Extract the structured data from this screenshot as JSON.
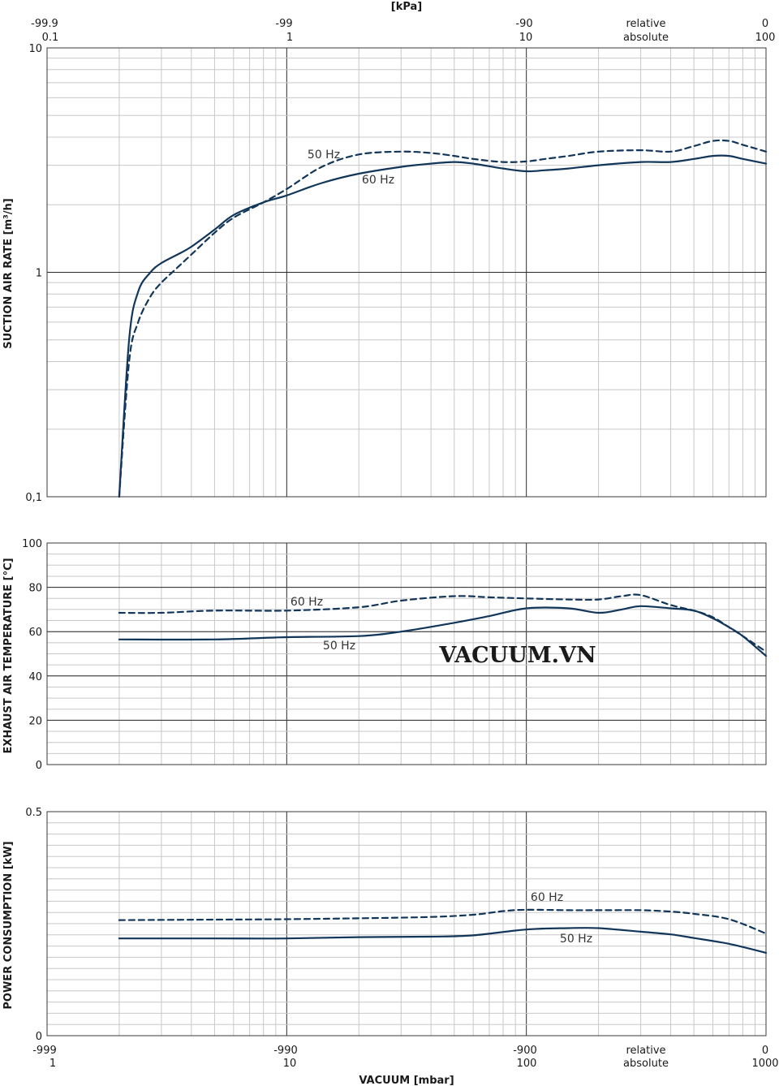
{
  "colors": {
    "curve": "#12365a",
    "grid_major": "#2a2a2a",
    "grid_minor": "#c8c8c8"
  },
  "watermark": "VACUUM.VN",
  "top_axis": {
    "title": "[kPa]",
    "relative_label": "relative",
    "absolute_label": "absolute",
    "ticks": [
      {
        "rel": "-99.9",
        "abs": "0.1"
      },
      {
        "rel": "-99",
        "abs": "1"
      },
      {
        "rel": "-90",
        "abs": "10"
      },
      {
        "rel": "0",
        "abs": "100"
      }
    ]
  },
  "bottom_axis": {
    "title": "VACUUM  [mbar]",
    "relative_label": "relative",
    "absolute_label": "absolute",
    "ticks": [
      {
        "rel": "-999",
        "abs": "1"
      },
      {
        "rel": "-990",
        "abs": "10"
      },
      {
        "rel": "-900",
        "abs": "100"
      },
      {
        "rel": "0",
        "abs": "1000"
      }
    ]
  },
  "chart_data": [
    {
      "type": "line",
      "ylabel": "SUCTION AIR RATE  [m³/h]",
      "x_scale": "log",
      "xlim": [
        1,
        1000
      ],
      "y_scale": "log",
      "ylim": [
        0.1,
        10
      ],
      "yticks": [
        {
          "v": 0.1,
          "label": "0,1"
        },
        {
          "v": 1,
          "label": "1"
        },
        {
          "v": 10,
          "label": "10"
        }
      ],
      "series": [
        {
          "name": "50 Hz",
          "style": "solid",
          "x": [
            2,
            2.2,
            2.4,
            2.7,
            3,
            3.5,
            4,
            5,
            6,
            8,
            10,
            14,
            20,
            30,
            40,
            50,
            60,
            80,
            100,
            120,
            150,
            200,
            300,
            400,
            500,
            600,
            700,
            800,
            1000
          ],
          "y": [
            0.1,
            0.5,
            0.82,
            1.0,
            1.1,
            1.2,
            1.3,
            1.55,
            1.8,
            2.05,
            2.2,
            2.5,
            2.75,
            2.95,
            3.05,
            3.1,
            3.05,
            2.9,
            2.82,
            2.85,
            2.9,
            3.0,
            3.1,
            3.1,
            3.2,
            3.3,
            3.3,
            3.2,
            3.05
          ]
        },
        {
          "name": "60 Hz",
          "style": "dashed",
          "x": [
            2,
            2.2,
            2.4,
            2.7,
            3,
            3.5,
            4,
            5,
            6,
            8,
            10,
            14,
            20,
            30,
            40,
            50,
            60,
            80,
            100,
            120,
            150,
            200,
            300,
            400,
            500,
            600,
            700,
            800,
            1000
          ],
          "y": [
            0.1,
            0.4,
            0.6,
            0.78,
            0.9,
            1.05,
            1.2,
            1.5,
            1.75,
            2.05,
            2.35,
            2.95,
            3.35,
            3.45,
            3.4,
            3.3,
            3.2,
            3.1,
            3.12,
            3.2,
            3.3,
            3.45,
            3.5,
            3.45,
            3.65,
            3.85,
            3.85,
            3.7,
            3.45
          ]
        }
      ]
    },
    {
      "type": "line",
      "ylabel": "EXHAUST AIR TEMPERATURE  [°C]",
      "x_scale": "log",
      "xlim": [
        1,
        1000
      ],
      "y_scale": "linear",
      "ylim": [
        0,
        100
      ],
      "yticks": [
        {
          "v": 0,
          "label": "0"
        },
        {
          "v": 20,
          "label": "20"
        },
        {
          "v": 40,
          "label": "40"
        },
        {
          "v": 60,
          "label": "60"
        },
        {
          "v": 80,
          "label": "80"
        },
        {
          "v": 100,
          "label": "100"
        }
      ],
      "series": [
        {
          "name": "50 Hz",
          "style": "solid",
          "x": [
            2,
            5,
            10,
            20,
            30,
            50,
            70,
            100,
            150,
            200,
            250,
            300,
            400,
            500,
            600,
            700,
            800,
            1000
          ],
          "y": [
            56.5,
            56.5,
            57.5,
            58,
            60,
            64,
            67,
            70.5,
            70.5,
            68.5,
            70,
            71.5,
            70.5,
            69.5,
            66,
            62,
            58,
            49
          ]
        },
        {
          "name": "60 Hz",
          "style": "dashed",
          "x": [
            2,
            3,
            5,
            10,
            20,
            30,
            50,
            70,
            100,
            150,
            200,
            250,
            300,
            400,
            500,
            600,
            700,
            800,
            1000
          ],
          "y": [
            68.5,
            68.5,
            69.5,
            69.5,
            71,
            74,
            76,
            75.5,
            75,
            74.5,
            74.5,
            76,
            76.5,
            72,
            69.5,
            66.5,
            62,
            58,
            51
          ]
        }
      ]
    },
    {
      "type": "line",
      "ylabel": "POWER CONSUMPTION  [kW]",
      "x_scale": "log",
      "xlim": [
        1,
        1000
      ],
      "y_scale": "linear",
      "ylim": [
        0,
        0.5
      ],
      "yticks": [
        {
          "v": 0,
          "label": "0"
        },
        {
          "v": 0.5,
          "label": "0.5"
        }
      ],
      "series": [
        {
          "name": "50 Hz",
          "style": "solid",
          "x": [
            2,
            5,
            10,
            20,
            40,
            60,
            100,
            150,
            200,
            300,
            400,
            500,
            700,
            1000
          ],
          "y": [
            0.217,
            0.217,
            0.217,
            0.22,
            0.221,
            0.224,
            0.237,
            0.24,
            0.24,
            0.232,
            0.226,
            0.218,
            0.205,
            0.185
          ]
        },
        {
          "name": "60 Hz",
          "style": "dashed",
          "x": [
            2,
            5,
            10,
            20,
            40,
            60,
            80,
            100,
            150,
            200,
            300,
            400,
            500,
            700,
            1000
          ],
          "y": [
            0.258,
            0.259,
            0.26,
            0.262,
            0.265,
            0.27,
            0.278,
            0.281,
            0.28,
            0.28,
            0.28,
            0.277,
            0.272,
            0.26,
            0.228
          ]
        }
      ]
    }
  ]
}
